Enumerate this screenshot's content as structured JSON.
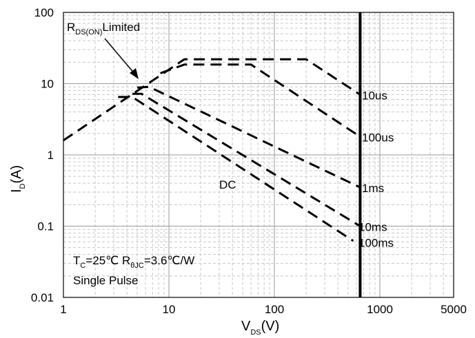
{
  "chart_data": {
    "type": "line",
    "x_scale": "log",
    "y_scale": "log",
    "xlim": [
      1,
      5000
    ],
    "ylim": [
      0.01,
      100
    ],
    "grid": true,
    "x_ticks": [
      "1",
      "10",
      "100",
      "1000",
      "5000"
    ],
    "y_ticks": [
      "100",
      "10",
      "1",
      "0.1",
      "0.01"
    ],
    "xlabel": {
      "main": "V",
      "sub": "DS",
      "unit": "(V)"
    },
    "ylabel": {
      "main": "I",
      "sub": "D",
      "unit": "(A)"
    },
    "annotation_rds": {
      "main": "R",
      "sub": "DS(ON)",
      "rest": "Limited"
    },
    "conditions_line1": {
      "t": "T",
      "t_sub": "C",
      "t_val": "=25℃  ",
      "r": "R",
      "r_sub": "θJC",
      "r_val": "=3.6℃/W"
    },
    "conditions_line2": "Single Pulse",
    "vds_limit": 650,
    "series": [
      {
        "name": "10us",
        "x": [
          1,
          14,
          200,
          650
        ],
        "y": [
          1.6,
          22,
          22,
          7
        ]
      },
      {
        "name": "100us",
        "x": [
          8.3,
          14,
          60,
          650
        ],
        "y": [
          14,
          18.5,
          18.5,
          1.8
        ]
      },
      {
        "name": "1ms",
        "x": [
          5,
          6.5,
          650
        ],
        "y": [
          8.8,
          9,
          0.35
        ]
      },
      {
        "name": "10ms",
        "x": [
          4.5,
          5.5,
          650
        ],
        "y": [
          7.2,
          7.2,
          0.1
        ]
      },
      {
        "name": "100ms",
        "x": [
          3.3,
          4.5,
          560
        ],
        "y": [
          6.5,
          6.5,
          0.062
        ]
      },
      {
        "name": "DC",
        "x": [
          650
        ],
        "y": [
          0.07
        ]
      }
    ],
    "series_labels": [
      "10us",
      "100us",
      "1ms",
      "10ms",
      "100ms"
    ],
    "dc_label": "DC"
  }
}
